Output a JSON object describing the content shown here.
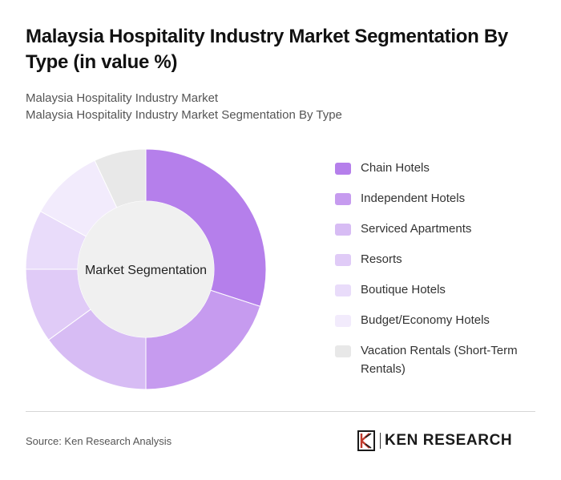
{
  "header": {
    "title": "Malaysia Hospitality Industry Market Segmentation By Type (in value %)",
    "subtitle_line1": "Malaysia Hospitality Industry Market",
    "subtitle_line2": "Malaysia Hospitality Industry Market Segmentation By Type"
  },
  "chart_data": {
    "type": "pie",
    "variant": "donut",
    "center_label": "Market Segmentation",
    "categories": [
      "Chain Hotels",
      "Independent Hotels",
      "Serviced Apartments",
      "Resorts",
      "Boutique Hotels",
      "Budget/Economy Hotels",
      "Vacation Rentals (Short-Term Rentals)"
    ],
    "values": [
      30,
      20,
      15,
      10,
      8,
      10,
      7
    ],
    "colors": [
      "#b57feb",
      "#c69bef",
      "#d7bcf4",
      "#e0cbf7",
      "#e9dcfa",
      "#f2ebfc",
      "#e8e8e8"
    ],
    "legend_position": "right"
  },
  "footer": {
    "source": "Source: Ken Research Analysis",
    "brand": "KEN RESEARCH"
  }
}
